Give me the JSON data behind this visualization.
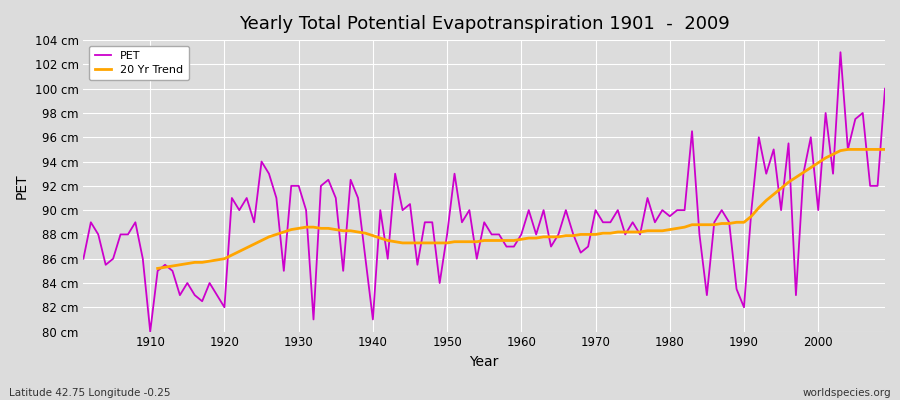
{
  "title": "Yearly Total Potential Evapotranspiration 1901  -  2009",
  "xlabel": "Year",
  "ylabel": "PET",
  "subtitle": "Latitude 42.75 Longitude -0.25",
  "watermark": "worldspecies.org",
  "ylim": [
    80,
    104
  ],
  "ytick_step": 2,
  "ytick_suffix": " cm",
  "background_color": "#dcdcdc",
  "plot_bg_color": "#dcdcdc",
  "grid_color": "#ffffff",
  "pet_color": "#cc00cc",
  "trend_color": "#ffa500",
  "pet_label": "PET",
  "trend_label": "20 Yr Trend",
  "years": [
    1901,
    1902,
    1903,
    1904,
    1905,
    1906,
    1907,
    1908,
    1909,
    1910,
    1911,
    1912,
    1913,
    1914,
    1915,
    1916,
    1917,
    1918,
    1919,
    1920,
    1921,
    1922,
    1923,
    1924,
    1925,
    1926,
    1927,
    1928,
    1929,
    1930,
    1931,
    1932,
    1933,
    1934,
    1935,
    1936,
    1937,
    1938,
    1939,
    1940,
    1941,
    1942,
    1943,
    1944,
    1945,
    1946,
    1947,
    1948,
    1949,
    1950,
    1951,
    1952,
    1953,
    1954,
    1955,
    1956,
    1957,
    1958,
    1959,
    1960,
    1961,
    1962,
    1963,
    1964,
    1965,
    1966,
    1967,
    1968,
    1969,
    1970,
    1971,
    1972,
    1973,
    1974,
    1975,
    1976,
    1977,
    1978,
    1979,
    1980,
    1981,
    1982,
    1983,
    1984,
    1985,
    1986,
    1987,
    1988,
    1989,
    1990,
    1991,
    1992,
    1993,
    1994,
    1995,
    1996,
    1997,
    1998,
    1999,
    2000,
    2001,
    2002,
    2003,
    2004,
    2005,
    2006,
    2007,
    2008,
    2009
  ],
  "pet_values": [
    86.0,
    89.0,
    88.0,
    85.5,
    86.0,
    88.0,
    88.0,
    89.0,
    86.0,
    80.0,
    85.0,
    85.5,
    85.0,
    83.0,
    84.0,
    83.0,
    82.5,
    84.0,
    83.0,
    82.0,
    91.0,
    90.0,
    91.0,
    89.0,
    94.0,
    93.0,
    91.0,
    85.0,
    92.0,
    92.0,
    90.0,
    81.0,
    92.0,
    92.5,
    91.0,
    85.0,
    92.5,
    91.0,
    86.0,
    81.0,
    90.0,
    86.0,
    93.0,
    90.0,
    90.5,
    85.5,
    89.0,
    89.0,
    84.0,
    88.0,
    93.0,
    89.0,
    90.0,
    86.0,
    89.0,
    88.0,
    88.0,
    87.0,
    87.0,
    88.0,
    90.0,
    88.0,
    90.0,
    87.0,
    88.0,
    90.0,
    88.0,
    86.5,
    87.0,
    90.0,
    89.0,
    89.0,
    90.0,
    88.0,
    89.0,
    88.0,
    91.0,
    89.0,
    90.0,
    89.5,
    90.0,
    90.0,
    96.5,
    88.0,
    83.0,
    89.0,
    90.0,
    89.0,
    83.5,
    82.0,
    90.0,
    96.0,
    93.0,
    95.0,
    90.0,
    95.5,
    83.0,
    93.0,
    96.0,
    90.0,
    98.0,
    93.0,
    103.0,
    95.0,
    97.5,
    98.0,
    92.0,
    92.0,
    100.0
  ],
  "trend_values": [
    null,
    null,
    null,
    null,
    null,
    null,
    null,
    null,
    null,
    null,
    85.2,
    85.3,
    85.4,
    85.5,
    85.6,
    85.7,
    85.7,
    85.8,
    85.9,
    86.0,
    86.3,
    86.6,
    86.9,
    87.2,
    87.5,
    87.8,
    88.0,
    88.2,
    88.4,
    88.5,
    88.6,
    88.6,
    88.5,
    88.5,
    88.4,
    88.3,
    88.3,
    88.2,
    88.1,
    87.9,
    87.7,
    87.5,
    87.4,
    87.3,
    87.3,
    87.3,
    87.3,
    87.3,
    87.3,
    87.3,
    87.4,
    87.4,
    87.4,
    87.4,
    87.5,
    87.5,
    87.5,
    87.5,
    87.5,
    87.6,
    87.7,
    87.7,
    87.8,
    87.8,
    87.8,
    87.9,
    87.9,
    88.0,
    88.0,
    88.0,
    88.1,
    88.1,
    88.2,
    88.2,
    88.2,
    88.2,
    88.3,
    88.3,
    88.3,
    88.4,
    88.5,
    88.6,
    88.8,
    88.8,
    88.8,
    88.8,
    88.9,
    88.9,
    89.0,
    89.0,
    89.5,
    90.2,
    90.8,
    91.3,
    91.8,
    92.3,
    92.7,
    93.1,
    93.5,
    93.9,
    94.3,
    94.6,
    94.9,
    95.0,
    95.0,
    95.0,
    95.0,
    95.0,
    95.0
  ]
}
